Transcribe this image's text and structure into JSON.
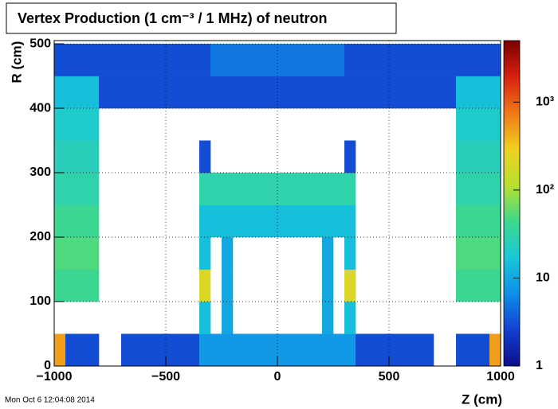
{
  "chart_data": {
    "type": "heatmap",
    "title": "Vertex Production (1 cm⁻³ / 1 MHz) of   neutron",
    "xlabel": "Z (cm)",
    "ylabel": "R (cm)",
    "timestamp": "Mon Oct  6 12:04:08 2014",
    "xlim": [
      -1000,
      1000
    ],
    "ylim": [
      0,
      505
    ],
    "xticks": [
      {
        "value": -1000,
        "label": "−1000"
      },
      {
        "value": -500,
        "label": "−500"
      },
      0,
      500,
      1000
    ],
    "yticks": [
      0,
      100,
      200,
      300,
      400,
      500
    ],
    "grid": true,
    "zlog": true,
    "zlim": [
      1,
      5000
    ],
    "zticks": [
      1,
      10,
      {
        "value": 100,
        "label": "10²"
      },
      {
        "value": 1000,
        "label": "10³"
      }
    ],
    "colormap": [
      "#0d0d8c",
      "#1240d0",
      "#0f8ee8",
      "#18c8d8",
      "#3fd88a",
      "#b8e030",
      "#f0d020",
      "#f07818",
      "#d82010",
      "#780000"
    ],
    "xbins": [
      -1000,
      -950,
      -900,
      -850,
      -800,
      -750,
      -700,
      -650,
      -600,
      -550,
      -500,
      -450,
      -400,
      -350,
      -300,
      -250,
      -200,
      -150,
      -100,
      -50,
      0,
      50,
      100,
      150,
      200,
      250,
      300,
      350,
      400,
      450,
      500,
      550,
      600,
      650,
      700,
      750,
      800,
      850,
      900,
      950,
      1000
    ],
    "ybins": [
      0,
      50,
      100,
      150,
      200,
      250,
      300,
      350,
      400,
      450,
      500
    ],
    "values": [
      [
        500,
        3,
        3,
        3,
        null,
        null,
        3,
        3,
        3,
        3,
        3,
        3,
        3,
        8,
        8,
        8,
        8,
        8,
        8,
        8,
        8,
        8,
        8,
        8,
        8,
        8,
        8,
        3,
        3,
        3,
        3,
        3,
        3,
        3,
        null,
        null,
        3,
        3,
        3,
        500
      ],
      [
        null,
        null,
        null,
        null,
        null,
        null,
        null,
        null,
        null,
        null,
        null,
        null,
        null,
        15,
        null,
        10,
        null,
        null,
        null,
        null,
        null,
        null,
        null,
        null,
        10,
        null,
        15,
        null,
        null,
        null,
        null,
        null,
        null,
        null,
        null,
        null,
        null,
        null,
        null,
        null
      ],
      [
        40,
        40,
        40,
        40,
        null,
        null,
        null,
        null,
        null,
        null,
        null,
        null,
        null,
        200,
        null,
        10,
        null,
        null,
        null,
        null,
        null,
        null,
        null,
        null,
        10,
        null,
        200,
        null,
        null,
        null,
        null,
        null,
        null,
        null,
        null,
        null,
        40,
        40,
        40,
        40
      ],
      [
        50,
        50,
        50,
        50,
        null,
        null,
        null,
        null,
        null,
        null,
        null,
        null,
        null,
        15,
        null,
        10,
        null,
        null,
        null,
        null,
        null,
        null,
        null,
        null,
        10,
        null,
        15,
        null,
        null,
        null,
        null,
        null,
        null,
        null,
        null,
        null,
        50,
        50,
        50,
        50
      ],
      [
        40,
        40,
        40,
        40,
        null,
        null,
        null,
        null,
        null,
        null,
        null,
        null,
        null,
        15,
        15,
        15,
        15,
        15,
        15,
        15,
        15,
        15,
        15,
        15,
        15,
        15,
        15,
        null,
        null,
        null,
        null,
        null,
        null,
        null,
        null,
        null,
        40,
        40,
        40,
        40
      ],
      [
        30,
        30,
        30,
        30,
        null,
        null,
        null,
        null,
        null,
        null,
        null,
        null,
        null,
        30,
        30,
        30,
        30,
        30,
        30,
        30,
        30,
        30,
        30,
        30,
        30,
        30,
        30,
        null,
        null,
        null,
        null,
        null,
        null,
        null,
        null,
        null,
        30,
        30,
        30,
        30
      ],
      [
        25,
        25,
        25,
        25,
        null,
        null,
        null,
        null,
        null,
        null,
        null,
        null,
        null,
        3,
        null,
        null,
        null,
        null,
        null,
        null,
        null,
        null,
        null,
        null,
        null,
        null,
        3,
        null,
        null,
        null,
        null,
        null,
        null,
        null,
        null,
        null,
        25,
        25,
        25,
        25
      ],
      [
        20,
        20,
        20,
        20,
        null,
        null,
        null,
        null,
        null,
        null,
        null,
        null,
        null,
        null,
        null,
        null,
        null,
        null,
        null,
        null,
        null,
        null,
        null,
        null,
        null,
        null,
        null,
        null,
        null,
        null,
        null,
        null,
        null,
        null,
        null,
        null,
        20,
        20,
        20,
        20
      ],
      [
        15,
        15,
        15,
        15,
        3,
        3,
        3,
        3,
        3,
        3,
        3,
        3,
        3,
        3,
        3,
        3,
        3,
        3,
        3,
        3,
        3,
        3,
        3,
        3,
        3,
        3,
        3,
        3,
        3,
        3,
        3,
        3,
        3,
        3,
        3,
        3,
        15,
        15,
        15,
        15
      ],
      [
        3,
        3,
        3,
        3,
        3,
        3,
        3,
        3,
        3,
        3,
        3,
        3,
        3,
        3,
        5,
        5,
        5,
        5,
        5,
        5,
        5,
        5,
        5,
        5,
        5,
        5,
        3,
        3,
        3,
        3,
        3,
        3,
        3,
        3,
        3,
        3,
        3,
        3,
        3,
        3
      ]
    ]
  }
}
